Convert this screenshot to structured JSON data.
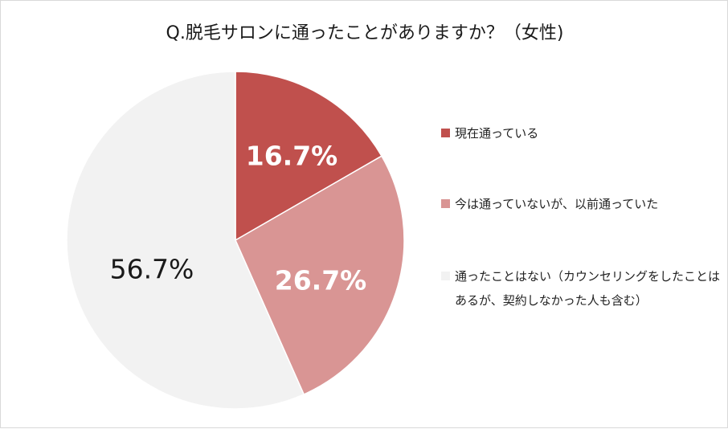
{
  "chart_data": {
    "type": "pie",
    "title": "Q.脱毛サロンに通ったことがありますか？（女性)",
    "slices": [
      {
        "label": "現在通っている",
        "value": 16.7,
        "display": "16.7%",
        "color": "#c0504d",
        "label_color": "#ffffff",
        "label_bold": true
      },
      {
        "label": "今は通っていないが、以前通っていた",
        "value": 26.7,
        "display": "26.7%",
        "color": "#d99594",
        "label_color": "#ffffff",
        "label_bold": true
      },
      {
        "label": "通ったことはない（カウンセリングをしたことはあるが、契約しなかった人も含む）",
        "value": 56.7,
        "display": "56.7%",
        "color": "#f2f2f2",
        "label_color": "#1a1a1a",
        "label_bold": false
      }
    ],
    "start_angle": "12 o'clock",
    "direction": "clockwise",
    "legend_position": "right"
  }
}
